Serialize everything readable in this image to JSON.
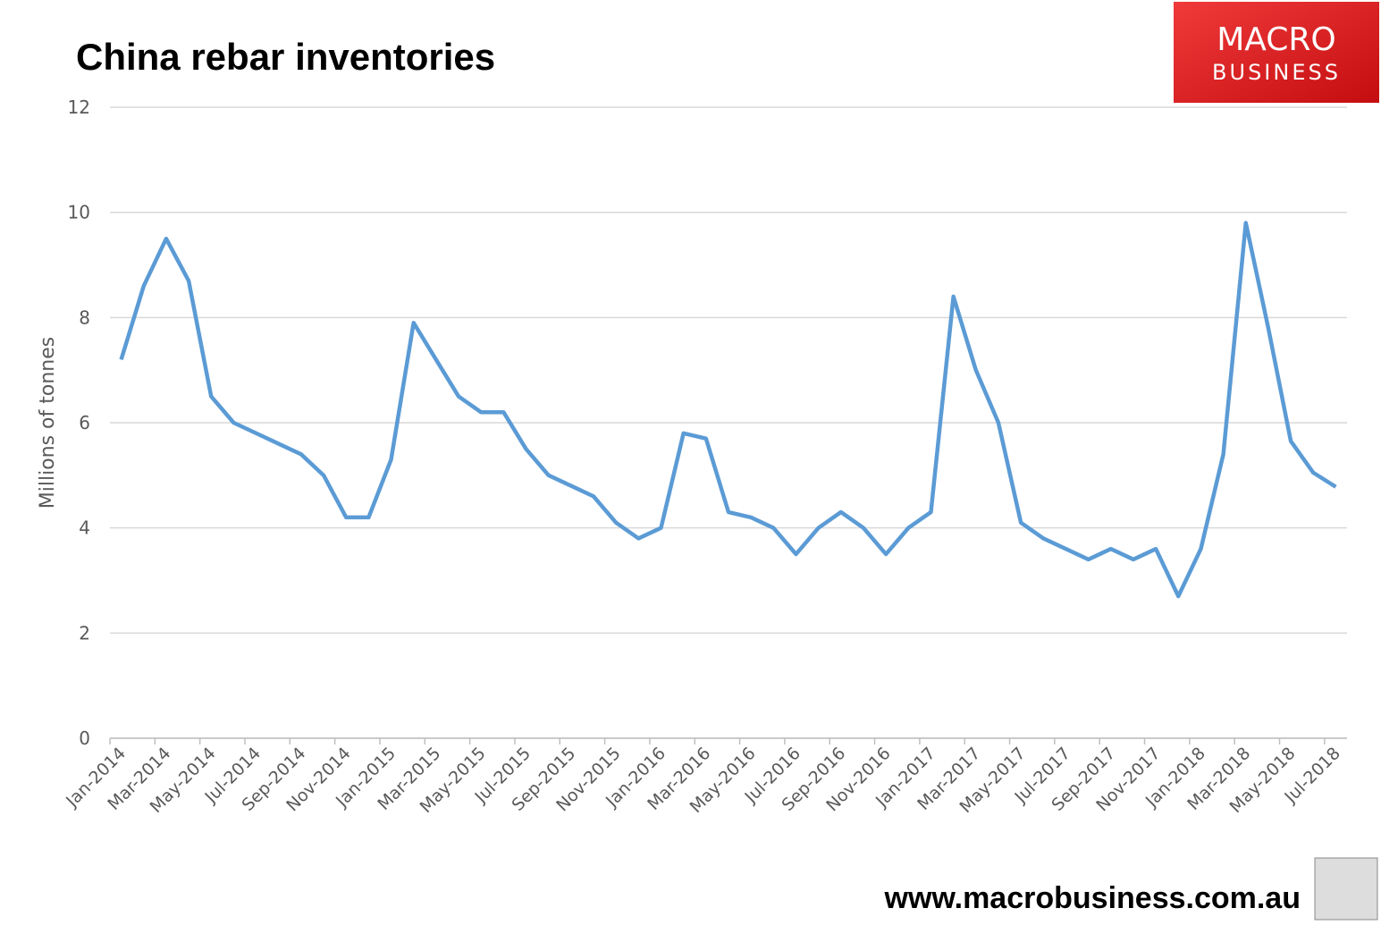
{
  "chart_data": {
    "type": "line",
    "title": "China rebar inventories",
    "y_label": "Millions of tonnes",
    "categories": [
      "Jan-2014",
      null,
      "Mar-2014",
      null,
      "May-2014",
      null,
      "Jul-2014",
      null,
      "Sep-2014",
      null,
      "Nov-2014",
      null,
      "Jan-2015",
      null,
      "Mar-2015",
      null,
      "May-2015",
      null,
      "Jul-2015",
      null,
      "Sep-2015",
      null,
      "Nov-2015",
      null,
      "Jan-2016",
      null,
      "Mar-2016",
      null,
      "May-2016",
      null,
      "Jul-2016",
      null,
      "Sep-2016",
      null,
      "Nov-2016",
      null,
      "Jan-2017",
      null,
      "Mar-2017",
      null,
      "May-2017",
      null,
      "Jul-2017",
      null,
      "Sep-2017",
      null,
      "Nov-2017",
      null,
      "Jan-2018",
      null,
      "Mar-2018",
      null,
      "May-2018",
      null,
      "Jul-2018"
    ],
    "series": [
      {
        "color": "#5b9bd5",
        "values": [
          7.2,
          8.6,
          9.5,
          8.7,
          6.5,
          6.0,
          5.8,
          5.6,
          5.4,
          5.0,
          4.2,
          4.2,
          5.3,
          7.9,
          7.2,
          6.5,
          6.2,
          6.2,
          5.5,
          5.0,
          4.8,
          4.6,
          4.1,
          3.8,
          4.0,
          5.8,
          5.7,
          4.3,
          4.2,
          4.0,
          3.5,
          4.0,
          4.3,
          4.0,
          3.5,
          4.0,
          4.3,
          8.4,
          7.0,
          6.0,
          4.1,
          3.8,
          3.6,
          3.4,
          3.6,
          3.4,
          3.6,
          2.7,
          3.6,
          5.4,
          9.8,
          7.8,
          5.65,
          5.05,
          4.78
        ]
      }
    ],
    "ylim": [
      0,
      12
    ],
    "yticks": [
      0,
      2,
      4,
      6,
      8,
      10,
      12
    ],
    "grid": true
  },
  "logo": {
    "line1": "MACRO",
    "line2": "BUSINESS"
  },
  "footer": "www.macrobusiness.com.au"
}
